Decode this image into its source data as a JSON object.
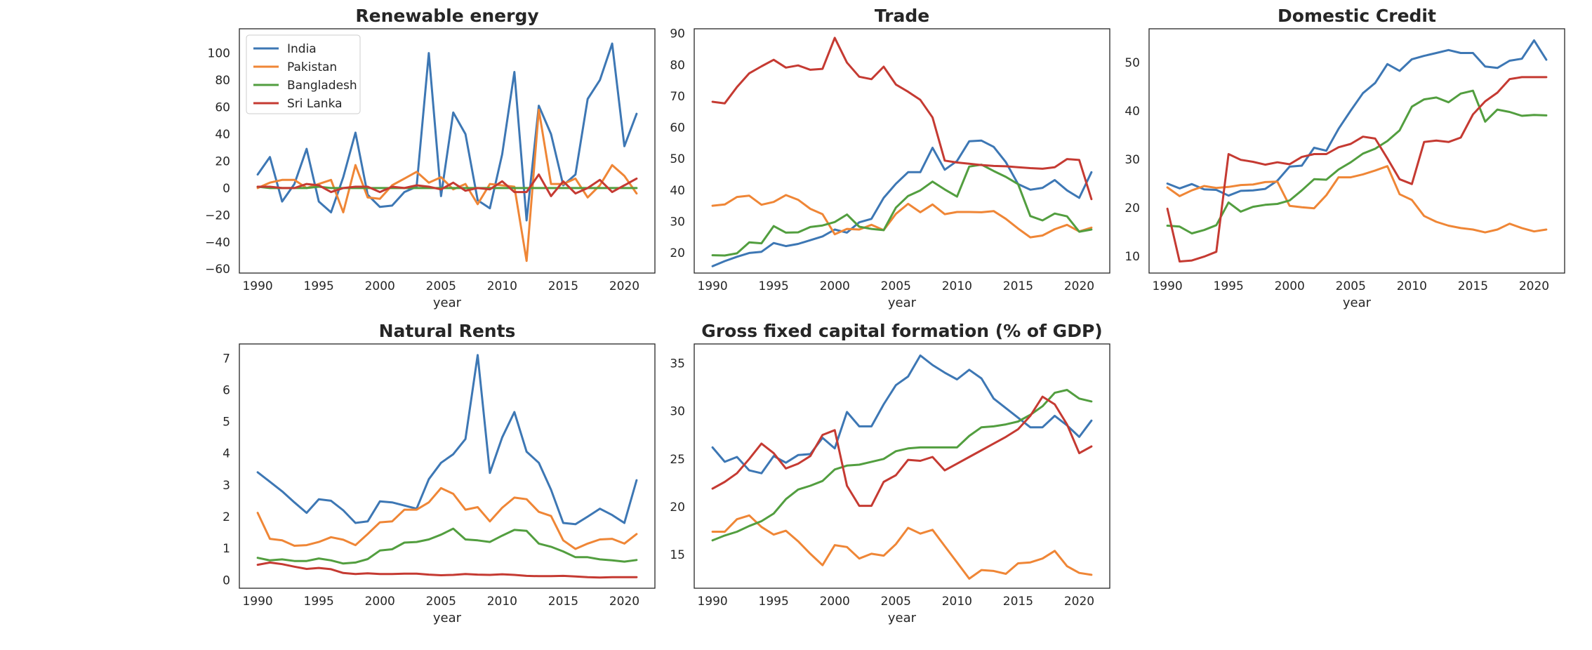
{
  "chart_data": [
    {
      "type": "line",
      "title": "Renewable energy",
      "xlabel": "year",
      "ylabel": "",
      "x": [
        1990,
        1991,
        1992,
        1993,
        1994,
        1995,
        1996,
        1997,
        1998,
        1999,
        2000,
        2001,
        2002,
        2003,
        2004,
        2005,
        2006,
        2007,
        2008,
        2009,
        2010,
        2011,
        2012,
        2013,
        2014,
        2015,
        2016,
        2017,
        2018,
        2019,
        2020,
        2021
      ],
      "xlim": [
        1988.5,
        2022.5
      ],
      "ylim": [
        -63,
        118
      ],
      "xticks": [
        1990,
        1995,
        2000,
        2005,
        2010,
        2015,
        2020
      ],
      "yticks": [
        -60,
        -40,
        -20,
        0,
        20,
        40,
        60,
        80,
        100
      ],
      "legend": "top-left",
      "grid": false,
      "series": [
        {
          "name": "India",
          "color": "#3d77b4",
          "values": [
            10,
            23,
            -10,
            3,
            29,
            -10,
            -18,
            8,
            41,
            -5,
            -14,
            -13,
            -3,
            1,
            100,
            -6,
            56,
            40,
            -9,
            -15,
            25,
            86,
            -24,
            61,
            40,
            2,
            10,
            66,
            80,
            107,
            31,
            55
          ]
        },
        {
          "name": "Pakistan",
          "color": "#ef8636",
          "values": [
            0,
            4,
            6,
            6,
            0,
            3,
            6,
            -18,
            17,
            -7,
            -8,
            2,
            7,
            12,
            4,
            8,
            -1,
            3,
            -12,
            3,
            2,
            1,
            -54,
            58,
            3,
            3,
            7,
            -7,
            2,
            17,
            9,
            -4
          ]
        },
        {
          "name": "Bangladesh",
          "color": "#529e3f",
          "values": [
            1,
            0,
            0,
            0,
            0,
            1,
            0,
            0,
            0,
            0,
            0,
            0,
            0,
            0,
            0,
            0,
            0,
            0,
            0,
            0,
            0,
            0,
            0,
            0,
            0,
            0,
            0,
            0,
            0,
            0,
            0,
            0
          ]
        },
        {
          "name": "Sri Lanka",
          "color": "#c53a32",
          "values": [
            1,
            1,
            0,
            0,
            3,
            2,
            -3,
            0,
            1,
            1,
            -3,
            1,
            0,
            2,
            1,
            -1,
            4,
            -2,
            0,
            -1,
            5,
            -3,
            -3,
            10,
            -6,
            5,
            -4,
            0,
            6,
            -3,
            2,
            7
          ]
        }
      ]
    },
    {
      "type": "line",
      "title": "Trade",
      "xlabel": "year",
      "ylabel": "",
      "x": [
        1990,
        1991,
        1992,
        1993,
        1994,
        1995,
        1996,
        1997,
        1998,
        1999,
        2000,
        2001,
        2002,
        2003,
        2004,
        2005,
        2006,
        2007,
        2008,
        2009,
        2010,
        2011,
        2012,
        2013,
        2014,
        2015,
        2016,
        2017,
        2018,
        2019,
        2020,
        2021
      ],
      "xlim": [
        1988.5,
        2022.5
      ],
      "ylim": [
        13.5,
        91.5
      ],
      "xticks": [
        1990,
        1995,
        2000,
        2005,
        2010,
        2015,
        2020
      ],
      "yticks": [
        20,
        30,
        40,
        50,
        60,
        70,
        80,
        90
      ],
      "grid": false,
      "series": [
        {
          "name": "India",
          "color": "#3d77b4",
          "values": [
            15.7,
            17.3,
            18.7,
            19.9,
            20.3,
            23.1,
            22.1,
            22.8,
            24.0,
            25.2,
            27.4,
            26.4,
            29.7,
            30.8,
            37.5,
            42.0,
            45.7,
            45.7,
            53.5,
            46.5,
            49.3,
            55.6,
            55.8,
            53.8,
            48.9,
            41.9,
            40.1,
            40.7,
            43.2,
            39.9,
            37.5,
            45.7
          ]
        },
        {
          "name": "Pakistan",
          "color": "#ef8636",
          "values": [
            35.0,
            35.4,
            37.8,
            38.2,
            35.3,
            36.2,
            38.4,
            36.9,
            34.0,
            32.3,
            25.9,
            27.6,
            27.4,
            28.9,
            27.2,
            32.4,
            35.6,
            32.9,
            35.4,
            32.3,
            33.0,
            33.0,
            32.9,
            33.3,
            30.8,
            27.7,
            24.9,
            25.5,
            27.5,
            28.9,
            26.8,
            28.0
          ]
        },
        {
          "name": "Bangladesh",
          "color": "#529e3f",
          "values": [
            19.2,
            19.1,
            19.8,
            23.3,
            23.0,
            28.5,
            26.4,
            26.5,
            28.2,
            28.7,
            29.8,
            32.2,
            28.3,
            27.6,
            27.2,
            34.4,
            38.1,
            39.9,
            42.7,
            40.2,
            37.9,
            47.5,
            48.1,
            46.1,
            44.2,
            41.9,
            31.7,
            30.3,
            32.5,
            31.6,
            26.7,
            27.4
          ]
        },
        {
          "name": "Sri Lanka",
          "color": "#c53a32",
          "values": [
            68.2,
            67.7,
            72.9,
            77.3,
            79.5,
            81.6,
            79.1,
            79.8,
            78.4,
            78.7,
            88.6,
            80.7,
            76.2,
            75.4,
            79.4,
            73.7,
            71.4,
            68.8,
            63.2,
            49.4,
            48.8,
            48.4,
            48.0,
            47.7,
            47.6,
            47.3,
            47.0,
            46.8,
            47.3,
            49.9,
            49.6,
            37.1
          ]
        }
      ]
    },
    {
      "type": "line",
      "title": "Domestic Credit",
      "xlabel": "year",
      "ylabel": "",
      "x": [
        1990,
        1991,
        1992,
        1993,
        1994,
        1995,
        1996,
        1997,
        1998,
        1999,
        2000,
        2001,
        2002,
        2003,
        2004,
        2005,
        2006,
        2007,
        2008,
        2009,
        2010,
        2011,
        2012,
        2013,
        2014,
        2015,
        2016,
        2017,
        2018,
        2019,
        2020,
        2021
      ],
      "xlim": [
        1988.5,
        2022.5
      ],
      "ylim": [
        6.5,
        57.0
      ],
      "xticks": [
        1990,
        1995,
        2000,
        2005,
        2010,
        2015,
        2020
      ],
      "yticks": [
        10,
        20,
        30,
        40,
        50
      ],
      "grid": false,
      "series": [
        {
          "name": "India",
          "color": "#3d77b4",
          "values": [
            25.0,
            24.0,
            24.9,
            23.8,
            23.7,
            22.5,
            23.5,
            23.6,
            23.9,
            25.6,
            28.5,
            28.7,
            32.4,
            31.8,
            36.3,
            40.1,
            43.7,
            45.8,
            49.7,
            48.3,
            50.7,
            51.4,
            52.0,
            52.6,
            52.0,
            52.0,
            49.2,
            48.9,
            50.4,
            50.8,
            54.6,
            50.6
          ]
        },
        {
          "name": "Pakistan",
          "color": "#ef8636",
          "values": [
            24.2,
            22.4,
            23.6,
            24.5,
            24.1,
            24.3,
            24.7,
            24.8,
            25.3,
            25.4,
            20.4,
            20.1,
            19.9,
            22.6,
            26.3,
            26.3,
            26.9,
            27.7,
            28.6,
            22.8,
            21.6,
            18.3,
            17.1,
            16.3,
            15.8,
            15.5,
            14.9,
            15.5,
            16.7,
            15.8,
            15.1,
            15.5
          ]
        },
        {
          "name": "Bangladesh",
          "color": "#529e3f",
          "values": [
            16.3,
            16.1,
            14.7,
            15.4,
            16.4,
            21.1,
            19.2,
            20.2,
            20.6,
            20.8,
            21.5,
            23.6,
            25.9,
            25.8,
            27.9,
            29.4,
            31.2,
            32.2,
            33.8,
            36.0,
            40.9,
            42.4,
            42.8,
            41.8,
            43.6,
            44.2,
            37.8,
            40.3,
            39.8,
            39.0,
            39.2,
            39.1
          ]
        },
        {
          "name": "Sri Lanka",
          "color": "#c53a32",
          "values": [
            19.8,
            8.9,
            9.1,
            9.9,
            10.9,
            31.1,
            29.9,
            29.5,
            28.9,
            29.4,
            29.0,
            30.5,
            31.1,
            31.1,
            32.5,
            33.2,
            34.7,
            34.3,
            30.2,
            25.9,
            24.9,
            33.6,
            33.9,
            33.6,
            34.5,
            39.3,
            42.0,
            43.8,
            46.6,
            47.0,
            47.0,
            47.0
          ]
        }
      ]
    },
    {
      "type": "line",
      "title": "Natural Rents",
      "xlabel": "year",
      "ylabel": "",
      "x": [
        1990,
        1991,
        1992,
        1993,
        1994,
        1995,
        1996,
        1997,
        1998,
        1999,
        2000,
        2001,
        2002,
        2003,
        2004,
        2005,
        2006,
        2007,
        2008,
        2009,
        2010,
        2011,
        2012,
        2013,
        2014,
        2015,
        2016,
        2017,
        2018,
        2019,
        2020,
        2021
      ],
      "xlim": [
        1988.5,
        2022.5
      ],
      "ylim": [
        -0.26,
        7.45
      ],
      "xticks": [
        1990,
        1995,
        2000,
        2005,
        2010,
        2015,
        2020
      ],
      "yticks": [
        0,
        1,
        2,
        3,
        4,
        5,
        6,
        7
      ],
      "grid": false,
      "series": [
        {
          "name": "India",
          "color": "#3d77b4",
          "values": [
            3.4,
            3.1,
            2.8,
            2.45,
            2.12,
            2.55,
            2.5,
            2.2,
            1.8,
            1.85,
            2.48,
            2.45,
            2.35,
            2.25,
            3.18,
            3.7,
            3.97,
            4.45,
            7.1,
            3.38,
            4.5,
            5.3,
            4.05,
            3.7,
            2.85,
            1.8,
            1.76,
            2.0,
            2.25,
            2.05,
            1.8,
            3.15
          ]
        },
        {
          "name": "Pakistan",
          "color": "#ef8636",
          "values": [
            2.12,
            1.3,
            1.25,
            1.08,
            1.1,
            1.2,
            1.35,
            1.27,
            1.1,
            1.45,
            1.82,
            1.85,
            2.22,
            2.22,
            2.45,
            2.9,
            2.72,
            2.22,
            2.3,
            1.85,
            2.28,
            2.6,
            2.55,
            2.15,
            2.02,
            1.25,
            0.98,
            1.15,
            1.28,
            1.3,
            1.15,
            1.45
          ]
        },
        {
          "name": "Bangladesh",
          "color": "#529e3f",
          "values": [
            0.7,
            0.62,
            0.65,
            0.6,
            0.6,
            0.68,
            0.62,
            0.52,
            0.55,
            0.66,
            0.93,
            0.97,
            1.18,
            1.2,
            1.28,
            1.43,
            1.62,
            1.28,
            1.25,
            1.2,
            1.4,
            1.58,
            1.55,
            1.15,
            1.05,
            0.9,
            0.72,
            0.72,
            0.65,
            0.62,
            0.58,
            0.63
          ]
        },
        {
          "name": "Sri Lanka",
          "color": "#c53a32",
          "values": [
            0.48,
            0.55,
            0.5,
            0.42,
            0.35,
            0.38,
            0.34,
            0.22,
            0.19,
            0.21,
            0.19,
            0.19,
            0.2,
            0.2,
            0.17,
            0.15,
            0.16,
            0.19,
            0.17,
            0.16,
            0.18,
            0.16,
            0.13,
            0.12,
            0.12,
            0.13,
            0.11,
            0.09,
            0.08,
            0.09,
            0.09,
            0.09
          ]
        }
      ]
    },
    {
      "type": "line",
      "title": "Gross fixed capital formation (% of GDP)",
      "xlabel": "year",
      "ylabel": "",
      "x": [
        1990,
        1991,
        1992,
        1993,
        1994,
        1995,
        1996,
        1997,
        1998,
        1999,
        2000,
        2001,
        2002,
        2003,
        2004,
        2005,
        2006,
        2007,
        2008,
        2009,
        2010,
        2011,
        2012,
        2013,
        2014,
        2015,
        2016,
        2017,
        2018,
        2019,
        2020,
        2021
      ],
      "xlim": [
        1988.5,
        2022.5
      ],
      "ylim": [
        11.5,
        37.0
      ],
      "xticks": [
        1990,
        1995,
        2000,
        2005,
        2010,
        2015,
        2020
      ],
      "yticks": [
        15,
        20,
        25,
        30,
        35
      ],
      "grid": false,
      "series": [
        {
          "name": "India",
          "color": "#3d77b4",
          "values": [
            26.2,
            24.7,
            25.2,
            23.8,
            23.5,
            25.3,
            24.6,
            25.4,
            25.5,
            27.2,
            26.1,
            29.9,
            28.4,
            28.4,
            30.7,
            32.7,
            33.6,
            35.8,
            34.8,
            34.0,
            33.3,
            34.3,
            33.4,
            31.3,
            30.3,
            29.3,
            28.3,
            28.3,
            29.5,
            28.5,
            27.3,
            29.0
          ]
        },
        {
          "name": "Pakistan",
          "color": "#ef8636",
          "values": [
            17.4,
            17.4,
            18.7,
            19.1,
            17.9,
            17.1,
            17.5,
            16.4,
            15.1,
            13.9,
            16.0,
            15.8,
            14.6,
            15.1,
            14.9,
            16.1,
            17.8,
            17.2,
            17.6,
            15.9,
            14.2,
            12.5,
            13.4,
            13.3,
            13.0,
            14.1,
            14.2,
            14.6,
            15.4,
            13.8,
            13.1,
            12.9
          ]
        },
        {
          "name": "Bangladesh",
          "color": "#529e3f",
          "values": [
            16.5,
            17.0,
            17.4,
            18.0,
            18.5,
            19.3,
            20.8,
            21.8,
            22.2,
            22.7,
            23.9,
            24.3,
            24.4,
            24.7,
            25.0,
            25.8,
            26.1,
            26.2,
            26.2,
            26.2,
            26.2,
            27.4,
            28.3,
            28.4,
            28.6,
            28.9,
            29.6,
            30.5,
            31.9,
            32.2,
            31.3,
            31.0
          ]
        },
        {
          "name": "Sri Lanka",
          "color": "#c53a32",
          "values": [
            21.9,
            22.6,
            23.5,
            25.0,
            26.6,
            25.6,
            24.0,
            24.5,
            25.3,
            27.5,
            28.0,
            22.2,
            20.1,
            20.1,
            22.6,
            23.3,
            24.9,
            24.8,
            25.2,
            23.8,
            24.5,
            25.2,
            25.9,
            26.6,
            27.3,
            28.1,
            29.5,
            31.5,
            30.7,
            28.6,
            25.6,
            26.3
          ]
        }
      ]
    }
  ],
  "legend_panel": 0
}
